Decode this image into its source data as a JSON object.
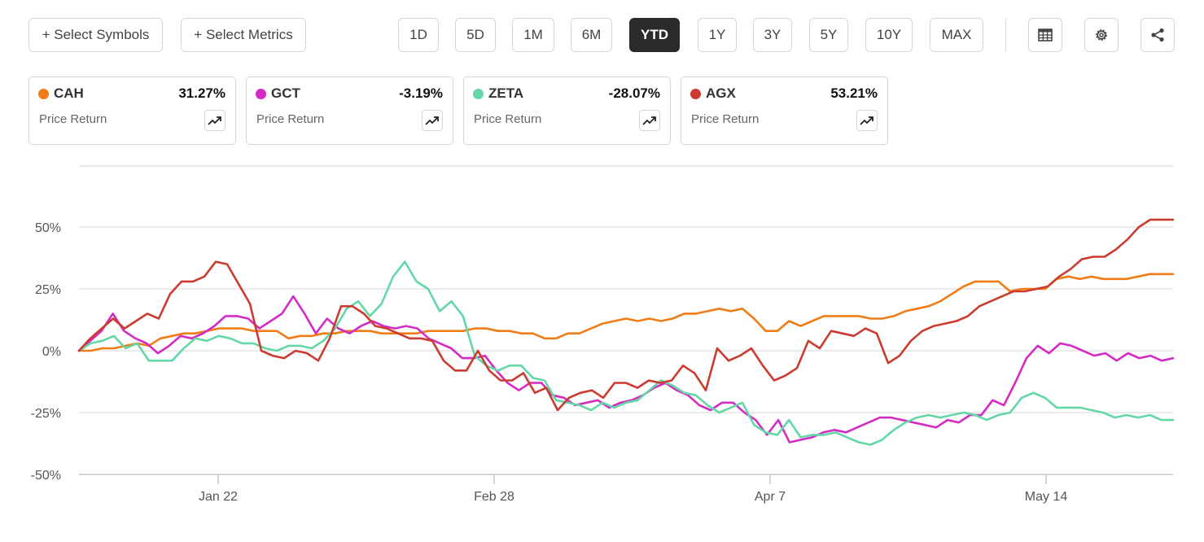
{
  "toolbar": {
    "select_symbols": "+ Select Symbols",
    "select_metrics": "+ Select Metrics",
    "ranges": [
      "1D",
      "5D",
      "1M",
      "6M",
      "YTD",
      "1Y",
      "3Y",
      "5Y",
      "10Y",
      "MAX"
    ],
    "active_range": "YTD",
    "icons": [
      "table-icon",
      "gear-icon",
      "share-icon"
    ]
  },
  "cards": [
    {
      "symbol": "CAH",
      "change": "31.27%",
      "metric": "Price Return",
      "color": "#f07c16"
    },
    {
      "symbol": "GCT",
      "change": "-3.19%",
      "metric": "Price Return",
      "color": "#d42bc4"
    },
    {
      "symbol": "ZETA",
      "change": "-28.07%",
      "metric": "Price Return",
      "color": "#63d7a6"
    },
    {
      "symbol": "AGX",
      "change": "53.21%",
      "metric": "Price Return",
      "color": "#cc3b30"
    }
  ],
  "chart_data": {
    "type": "line",
    "y_ticks": [
      "50%",
      "25%",
      "0%",
      "-25%",
      "-50%"
    ],
    "y_tick_values": [
      50,
      25,
      0,
      -25,
      -50
    ],
    "ylim": [
      -50,
      60
    ],
    "x_ticks": [
      "Jan 22",
      "Feb 28",
      "Apr 7",
      "May 14"
    ],
    "grid": true,
    "series": [
      {
        "name": "CAH",
        "color": "#f07c16",
        "values": [
          0,
          0,
          1,
          1,
          2,
          3,
          2,
          5,
          6,
          7,
          7,
          8,
          9,
          9,
          9,
          8,
          8,
          8,
          5,
          6,
          6,
          7,
          7,
          8,
          8,
          8,
          7,
          7,
          7,
          7,
          8,
          8,
          8,
          8,
          9,
          9,
          8,
          8,
          7,
          7,
          5,
          5,
          7,
          7,
          9,
          11,
          12,
          13,
          12,
          13,
          12,
          13,
          15,
          15,
          16,
          17,
          16,
          17,
          13,
          8,
          8,
          12,
          10,
          12,
          14,
          14,
          14,
          14,
          13,
          13,
          14,
          16,
          17,
          18,
          20,
          23,
          26,
          28,
          28,
          28,
          24,
          25,
          25,
          25,
          29,
          30,
          29,
          30,
          29,
          29,
          29,
          30,
          31,
          31,
          31
        ]
      },
      {
        "name": "GCT",
        "color": "#d42bc4",
        "values": [
          0,
          4,
          8,
          15,
          8,
          5,
          3,
          -1,
          2,
          6,
          5,
          7,
          10,
          14,
          14,
          13,
          9,
          12,
          15,
          22,
          15,
          7,
          13,
          9,
          7,
          10,
          12,
          10,
          9,
          10,
          9,
          5,
          3,
          1,
          -3,
          -3,
          -2,
          -8,
          -13,
          -16,
          -13,
          -13,
          -18,
          -19,
          -22,
          -21,
          -20,
          -23,
          -21,
          -20,
          -18,
          -15,
          -13,
          -16,
          -18,
          -22,
          -24,
          -21,
          -21,
          -25,
          -28,
          -34,
          -28,
          -37,
          -36,
          -35,
          -33,
          -32,
          -33,
          -31,
          -29,
          -27,
          -27,
          -28,
          -29,
          -30,
          -31,
          -28,
          -29,
          -26,
          -26,
          -20,
          -22,
          -13,
          -3,
          2,
          -1,
          3,
          2,
          0,
          -2,
          -1,
          -4,
          -1,
          -3,
          -2,
          -4,
          -3
        ]
      },
      {
        "name": "ZETA",
        "color": "#63d7a6",
        "values": [
          0,
          3,
          4,
          6,
          1,
          3,
          -4,
          -4,
          -4,
          1,
          5,
          4,
          6,
          5,
          3,
          3,
          1,
          0,
          2,
          2,
          1,
          4,
          9,
          17,
          20,
          14,
          19,
          30,
          36,
          28,
          25,
          16,
          20,
          14,
          -2,
          -6,
          -8,
          -6,
          -6,
          -11,
          -12,
          -20,
          -21,
          -22,
          -24,
          -21,
          -23,
          -21,
          -20,
          -16,
          -12,
          -14,
          -17,
          -18,
          -22,
          -25,
          -23,
          -21,
          -30,
          -33,
          -34,
          -28,
          -35,
          -34,
          -34,
          -33,
          -35,
          -37,
          -38,
          -36,
          -32,
          -29,
          -27,
          -26,
          -27,
          -26,
          -25,
          -26,
          -28,
          -26,
          -25,
          -19,
          -17,
          -19,
          -23,
          -23,
          -23,
          -24,
          -25,
          -27,
          -26,
          -27,
          -26,
          -28,
          -28
        ]
      },
      {
        "name": "AGX",
        "color": "#cc3b30",
        "values": [
          0,
          5,
          9,
          13,
          9,
          12,
          15,
          13,
          23,
          28,
          28,
          30,
          36,
          35,
          27,
          19,
          0,
          -2,
          -3,
          0,
          -1,
          -4,
          5,
          18,
          18,
          15,
          10,
          9,
          7,
          5,
          5,
          4,
          -4,
          -8,
          -8,
          0,
          -8,
          -12,
          -12,
          -9,
          -17,
          -15,
          -24,
          -19,
          -17,
          -16,
          -19,
          -13,
          -13,
          -15,
          -12,
          -13,
          -12,
          -6,
          -9,
          -16,
          1,
          -4,
          -2,
          1,
          -6,
          -12,
          -10,
          -7,
          4,
          1,
          8,
          7,
          6,
          9,
          7,
          -5,
          -2,
          4,
          8,
          10,
          11,
          12,
          14,
          18,
          20,
          22,
          24,
          24,
          25,
          26,
          30,
          33,
          37,
          38,
          38,
          41,
          45,
          50,
          53,
          53,
          53
        ]
      }
    ]
  }
}
